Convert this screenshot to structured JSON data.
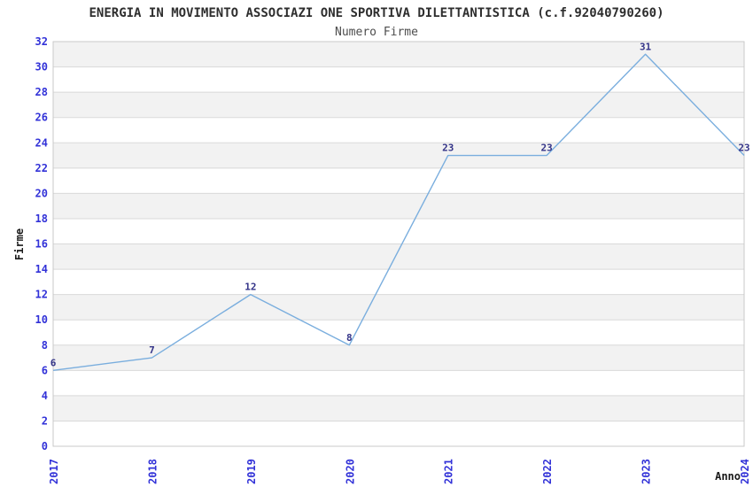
{
  "chart_data": {
    "type": "line",
    "title": "ENERGIA IN MOVIMENTO ASSOCIAZI ONE SPORTIVA DILETTANTISTICA (c.f.92040790260)",
    "subtitle": "Numero Firme",
    "xlabel": "Anno",
    "ylabel": "Firme",
    "categories": [
      "2017",
      "2018",
      "2019",
      "2020",
      "2021",
      "2022",
      "2023",
      "2024"
    ],
    "values": [
      6,
      7,
      12,
      8,
      23,
      23,
      31,
      23
    ],
    "ylim": [
      0,
      32
    ],
    "ytick_step": 2,
    "legend": "none",
    "grid": "alternating-horizontal-bands",
    "colors": {
      "line": "#7aaede",
      "band": "#f2f2f2",
      "gridline": "#d9d9d9",
      "plot_border": "#c9c9c9",
      "tick_label": "#3232d8",
      "point_label": "#333388",
      "title": "#2e2e2e",
      "subtitle": "#4d4d4d",
      "axis_title": "#1a1a1a",
      "background": "#ffffff"
    }
  }
}
